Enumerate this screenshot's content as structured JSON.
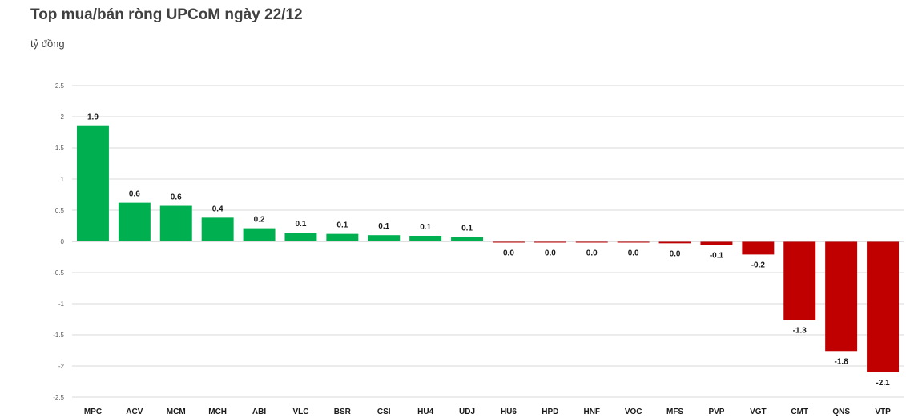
{
  "title": "Top mua/bán ròng UPCoM ngày 22/12",
  "unit_label": "tỷ đồng",
  "colors": {
    "positive": "#00b050",
    "negative": "#c00000",
    "grid": "#d9d9d9"
  },
  "chart_data": {
    "type": "bar",
    "title": "Top mua/bán ròng UPCoM ngày 22/12",
    "ylabel": "tỷ đồng",
    "ylim": [
      -2.5,
      2.5
    ],
    "yticks": [
      "2.5",
      "2",
      "1.5",
      "1",
      "0.5",
      "0",
      "-0.5",
      "-1",
      "-1.5",
      "-2",
      "-2.5"
    ],
    "grid": true,
    "categories": [
      "MPC",
      "ACV",
      "MCM",
      "MCH",
      "ABI",
      "VLC",
      "BSR",
      "CSI",
      "HU4",
      "UDJ",
      "HU6",
      "HPD",
      "HNF",
      "VOC",
      "MFS",
      "PVP",
      "VGT",
      "CMT",
      "QNS",
      "VTP"
    ],
    "values": [
      1.85,
      0.62,
      0.57,
      0.38,
      0.21,
      0.14,
      0.12,
      0.1,
      0.09,
      0.07,
      -0.01,
      -0.01,
      -0.01,
      -0.01,
      -0.03,
      -0.06,
      -0.21,
      -1.26,
      -1.76,
      -2.1
    ],
    "labels": [
      "1.9",
      "0.6",
      "0.6",
      "0.4",
      "0.2",
      "0.1",
      "0.1",
      "0.1",
      "0.1",
      "0.1",
      "0.0",
      "0.0",
      "0.0",
      "0.0",
      "0.0",
      "-0.1",
      "-0.2",
      "-1.3",
      "-1.8",
      "-2.1"
    ]
  }
}
